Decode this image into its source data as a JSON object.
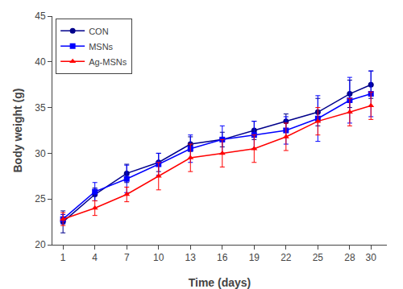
{
  "chart_data": {
    "type": "line",
    "x_label": "Time (days)",
    "y_label": "Body weight (g)",
    "x": [
      1,
      4,
      7,
      10,
      13,
      16,
      19,
      22,
      25,
      28,
      30
    ],
    "series": [
      {
        "name": "CON",
        "color": "#00008B",
        "marker": "circle",
        "values": [
          22.5,
          25.5,
          27.8,
          29.0,
          31.0,
          31.5,
          32.5,
          33.5,
          34.5,
          36.5,
          37.5
        ],
        "errors": [
          1.2,
          0.7,
          1.0,
          1.0,
          0.8,
          0.8,
          1.0,
          0.8,
          1.5,
          1.5,
          1.5
        ]
      },
      {
        "name": "MSNs",
        "color": "#0000FF",
        "marker": "square",
        "values": [
          22.8,
          25.8,
          27.2,
          28.8,
          30.5,
          31.5,
          32.0,
          32.5,
          33.8,
          35.8,
          36.5
        ],
        "errors": [
          0.5,
          1.0,
          1.5,
          1.2,
          1.5,
          1.5,
          1.5,
          1.5,
          2.5,
          2.5,
          2.5
        ]
      },
      {
        "name": "Ag-MSNs",
        "color": "#FF0000",
        "marker": "triangle",
        "values": [
          22.8,
          24.0,
          25.5,
          27.5,
          29.5,
          30.0,
          30.5,
          31.8,
          33.5,
          34.5,
          35.2
        ],
        "errors": [
          0.7,
          0.8,
          0.8,
          1.5,
          1.5,
          1.5,
          1.5,
          1.5,
          1.5,
          1.5,
          1.5
        ]
      }
    ],
    "xlim": [
      0.0,
      31.5
    ],
    "xticks": [
      1,
      4,
      7,
      10,
      13,
      16,
      19,
      22,
      25,
      28,
      30
    ],
    "ylim": [
      20,
      45
    ],
    "yticks": [
      20,
      25,
      30,
      35,
      40,
      45
    ],
    "grid": false,
    "legend": "upper left"
  }
}
